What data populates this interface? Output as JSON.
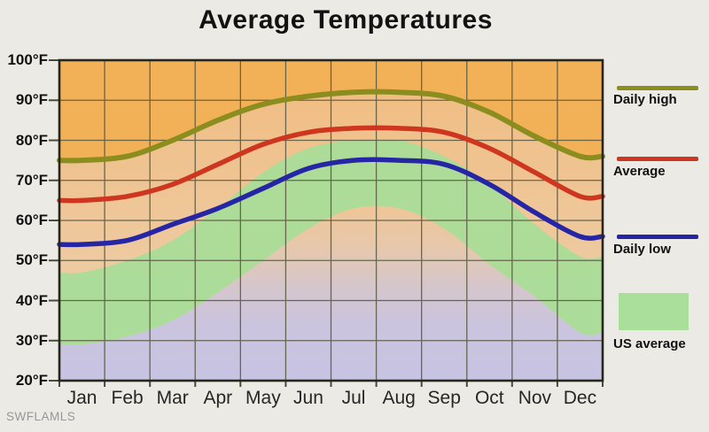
{
  "title": "Average Temperatures",
  "watermark": "SWFLAMLS",
  "y_axis": {
    "tick_labels": [
      "100°F",
      "90°F",
      "80°F",
      "70°F",
      "60°F",
      "50°F",
      "40°F",
      "30°F",
      "20°F"
    ]
  },
  "legend": [
    {
      "label": "Daily high",
      "swatch": "line",
      "color": "#8b8d1e"
    },
    {
      "label": "Average",
      "swatch": "line",
      "color": "#ce3620"
    },
    {
      "label": "Daily low",
      "swatch": "line",
      "color": "#2525a6"
    },
    {
      "label": "US average",
      "swatch": "rect",
      "color": "#aade9b"
    }
  ],
  "chart_data": {
    "type": "line",
    "title": "Average Temperatures",
    "categories": [
      "Jan",
      "Feb",
      "Mar",
      "Apr",
      "May",
      "Jun",
      "Jul",
      "Aug",
      "Sep",
      "Oct",
      "Nov",
      "Dec"
    ],
    "ylim": [
      20,
      100
    ],
    "y_tick_step": 10,
    "y_tick_labels": [
      "100°F",
      "90°F",
      "80°F",
      "70°F",
      "60°F",
      "50°F",
      "40°F",
      "30°F",
      "20°F"
    ],
    "grid": true,
    "legend_position": "right",
    "series": [
      {
        "name": "Daily high",
        "type": "line",
        "color": "#8b8d1e",
        "values": [
          75,
          76,
          80,
          85,
          89,
          91,
          92,
          92,
          91,
          87,
          81,
          76
        ]
      },
      {
        "name": "Average",
        "type": "line",
        "color": "#ce3620",
        "values": [
          65,
          66,
          69,
          74,
          79,
          82,
          83,
          83,
          82,
          78,
          72,
          66
        ]
      },
      {
        "name": "Daily low",
        "type": "line",
        "color": "#2525a6",
        "values": [
          54,
          55,
          59,
          63,
          68,
          73,
          75,
          75,
          74,
          69,
          62,
          56
        ]
      },
      {
        "name": "US average high",
        "type": "band-top",
        "color": "#a9dd98",
        "values": [
          47,
          50,
          55,
          63,
          72,
          78,
          80,
          80,
          76,
          69,
          59,
          51
        ]
      },
      {
        "name": "US average low",
        "type": "band-bottom",
        "color": "#a9dd98",
        "values": [
          29,
          31,
          35,
          42,
          50,
          58,
          63,
          63,
          58,
          49,
          41,
          32
        ]
      }
    ],
    "band_label": "US average",
    "colors": {
      "page_background": "#eceae4",
      "plot_background": "#f2b156",
      "below_daily_high_top": "#f0be84",
      "below_daily_high_bottom": "#edd2b4",
      "us_average_band": "#a9dd98",
      "below_us_low": "#c7c3e2",
      "grid": "#5b5b43",
      "border": "#26261a"
    }
  }
}
